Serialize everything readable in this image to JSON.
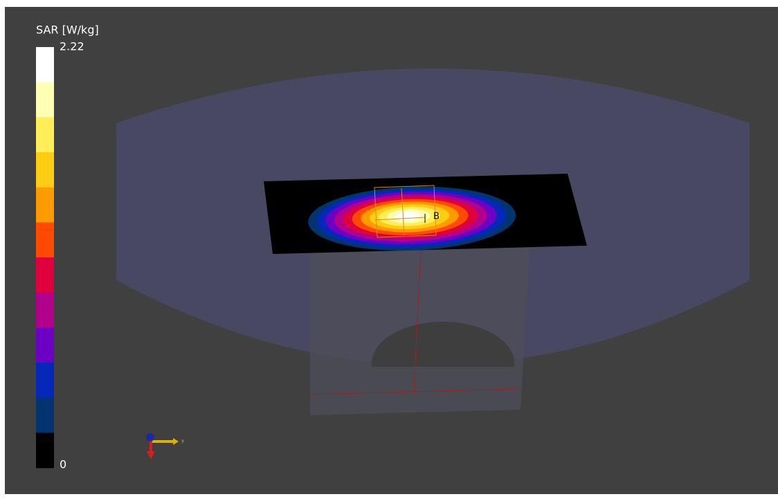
{
  "colorbar": {
    "title": "SAR [W/kg]",
    "max": 2.22,
    "min": 0,
    "colors": [
      "#ffffff",
      "#ffffb4",
      "#ffee58",
      "#ffcc14",
      "#ff9a00",
      "#ff4a00",
      "#e0003c",
      "#b0008c",
      "#6c00c4",
      "#0628b8",
      "#023470",
      "#000000"
    ]
  },
  "scene": {
    "point_label": "B",
    "axis_label": "y"
  }
}
